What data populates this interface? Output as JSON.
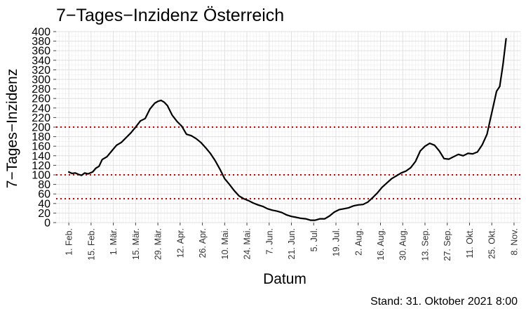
{
  "chart_data": {
    "type": "line",
    "title": "7−Tages−Inzidenz Österreich",
    "xlabel": "Datum",
    "ylabel": "7−Tages−Inzidenz",
    "caption": "Stand: 31. Oktober 2021 8:00",
    "ylim": [
      0,
      400
    ],
    "yticks": [
      0,
      20,
      40,
      60,
      80,
      100,
      120,
      140,
      160,
      180,
      200,
      220,
      240,
      260,
      280,
      300,
      320,
      340,
      360,
      380,
      400
    ],
    "xlim": [
      "2021-01-24",
      "2021-11-12"
    ],
    "xticks": [
      {
        "date": "2021-02-01",
        "label": "1. Feb."
      },
      {
        "date": "2021-02-15",
        "label": "15. Feb."
      },
      {
        "date": "2021-03-01",
        "label": "1. Mär."
      },
      {
        "date": "2021-03-15",
        "label": "15. Mär."
      },
      {
        "date": "2021-03-29",
        "label": "29. Mär."
      },
      {
        "date": "2021-04-12",
        "label": "12. Apr."
      },
      {
        "date": "2021-04-26",
        "label": "26. Apr."
      },
      {
        "date": "2021-05-10",
        "label": "10. Mai."
      },
      {
        "date": "2021-05-24",
        "label": "24. Mai."
      },
      {
        "date": "2021-06-07",
        "label": "7. Jun."
      },
      {
        "date": "2021-06-21",
        "label": "21. Jun."
      },
      {
        "date": "2021-07-05",
        "label": "5. Jul."
      },
      {
        "date": "2021-07-19",
        "label": "19. Jul."
      },
      {
        "date": "2021-08-02",
        "label": "2. Aug."
      },
      {
        "date": "2021-08-16",
        "label": "16. Aug."
      },
      {
        "date": "2021-08-30",
        "label": "30. Aug."
      },
      {
        "date": "2021-09-13",
        "label": "13. Sep."
      },
      {
        "date": "2021-09-27",
        "label": "27. Sep."
      },
      {
        "date": "2021-10-11",
        "label": "11. Okt."
      },
      {
        "date": "2021-10-25",
        "label": "25. Okt."
      },
      {
        "date": "2021-11-08",
        "label": "8. Nov."
      }
    ],
    "reference_lines": [
      {
        "y": 50,
        "color": "#cc0000",
        "style": "dotted"
      },
      {
        "y": 100,
        "color": "#cc0000",
        "style": "dotted"
      },
      {
        "y": 200,
        "color": "#cc0000",
        "style": "dotted"
      }
    ],
    "grid": true,
    "series": [
      {
        "color": "#000000",
        "points": [
          [
            "2021-02-01",
            106
          ],
          [
            "2021-02-03",
            103
          ],
          [
            "2021-02-05",
            104
          ],
          [
            "2021-02-07",
            101
          ],
          [
            "2021-02-09",
            99
          ],
          [
            "2021-02-11",
            104
          ],
          [
            "2021-02-13",
            102
          ],
          [
            "2021-02-16",
            106
          ],
          [
            "2021-02-18",
            114
          ],
          [
            "2021-02-20",
            118
          ],
          [
            "2021-02-22",
            132
          ],
          [
            "2021-02-25",
            138
          ],
          [
            "2021-02-28",
            150
          ],
          [
            "2021-03-03",
            162
          ],
          [
            "2021-03-06",
            168
          ],
          [
            "2021-03-09",
            178
          ],
          [
            "2021-03-12",
            188
          ],
          [
            "2021-03-15",
            200
          ],
          [
            "2021-03-18",
            213
          ],
          [
            "2021-03-21",
            218
          ],
          [
            "2021-03-24",
            238
          ],
          [
            "2021-03-27",
            250
          ],
          [
            "2021-03-29",
            254
          ],
          [
            "2021-03-31",
            256
          ],
          [
            "2021-04-02",
            252
          ],
          [
            "2021-04-04",
            245
          ],
          [
            "2021-04-07",
            225
          ],
          [
            "2021-04-10",
            212
          ],
          [
            "2021-04-13",
            202
          ],
          [
            "2021-04-16",
            185
          ],
          [
            "2021-04-19",
            182
          ],
          [
            "2021-04-22",
            176
          ],
          [
            "2021-04-25",
            168
          ],
          [
            "2021-04-28",
            157
          ],
          [
            "2021-05-01",
            145
          ],
          [
            "2021-05-04",
            130
          ],
          [
            "2021-05-07",
            112
          ],
          [
            "2021-05-10",
            92
          ],
          [
            "2021-05-13",
            80
          ],
          [
            "2021-05-16",
            67
          ],
          [
            "2021-05-19",
            56
          ],
          [
            "2021-05-22",
            50
          ],
          [
            "2021-05-25",
            46
          ],
          [
            "2021-05-28",
            41
          ],
          [
            "2021-05-31",
            37
          ],
          [
            "2021-06-03",
            34
          ],
          [
            "2021-06-06",
            29
          ],
          [
            "2021-06-09",
            26
          ],
          [
            "2021-06-12",
            24
          ],
          [
            "2021-06-15",
            21
          ],
          [
            "2021-06-18",
            16
          ],
          [
            "2021-06-21",
            13
          ],
          [
            "2021-06-24",
            11
          ],
          [
            "2021-06-27",
            9
          ],
          [
            "2021-06-30",
            8
          ],
          [
            "2021-07-03",
            5
          ],
          [
            "2021-07-06",
            5
          ],
          [
            "2021-07-09",
            8
          ],
          [
            "2021-07-12",
            8
          ],
          [
            "2021-07-15",
            14
          ],
          [
            "2021-07-18",
            22
          ],
          [
            "2021-07-21",
            27
          ],
          [
            "2021-07-24",
            29
          ],
          [
            "2021-07-27",
            31
          ],
          [
            "2021-07-30",
            35
          ],
          [
            "2021-08-02",
            37
          ],
          [
            "2021-08-05",
            38
          ],
          [
            "2021-08-08",
            43
          ],
          [
            "2021-08-11",
            52
          ],
          [
            "2021-08-14",
            62
          ],
          [
            "2021-08-17",
            74
          ],
          [
            "2021-08-20",
            83
          ],
          [
            "2021-08-23",
            92
          ],
          [
            "2021-08-26",
            98
          ],
          [
            "2021-08-29",
            104
          ],
          [
            "2021-09-01",
            108
          ],
          [
            "2021-09-04",
            115
          ],
          [
            "2021-09-07",
            128
          ],
          [
            "2021-09-10",
            150
          ],
          [
            "2021-09-13",
            160
          ],
          [
            "2021-09-16",
            166
          ],
          [
            "2021-09-19",
            162
          ],
          [
            "2021-09-22",
            150
          ],
          [
            "2021-09-25",
            134
          ],
          [
            "2021-09-28",
            133
          ],
          [
            "2021-10-01",
            138
          ],
          [
            "2021-10-04",
            143
          ],
          [
            "2021-10-07",
            140
          ],
          [
            "2021-10-10",
            145
          ],
          [
            "2021-10-13",
            144
          ],
          [
            "2021-10-16",
            148
          ],
          [
            "2021-10-19",
            163
          ],
          [
            "2021-10-22",
            185
          ],
          [
            "2021-10-24",
            215
          ],
          [
            "2021-10-26",
            245
          ],
          [
            "2021-10-28",
            275
          ],
          [
            "2021-10-30",
            285
          ],
          [
            "2021-11-01",
            330
          ],
          [
            "2021-11-03",
            385
          ]
        ]
      }
    ]
  }
}
